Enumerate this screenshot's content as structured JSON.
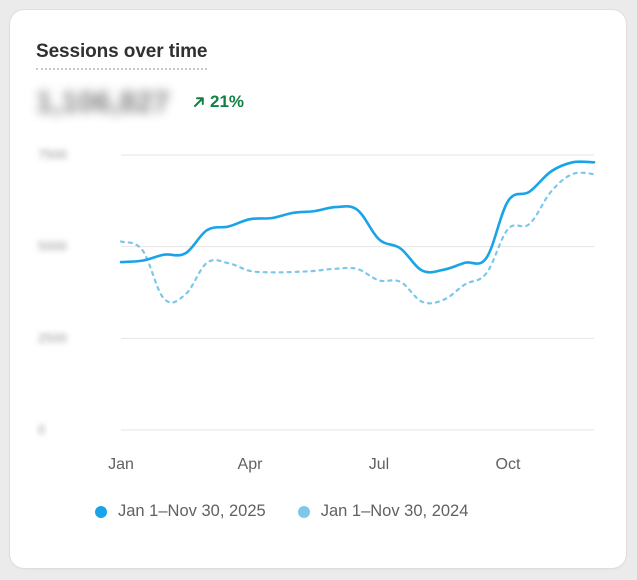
{
  "card": {
    "title": "Sessions over time",
    "total": "1,106,827",
    "change": "21%",
    "change_icon": "arrow-up-right-icon",
    "change_color": "#108043"
  },
  "chart_data": {
    "type": "line",
    "title": "Sessions over time",
    "xlabel": "",
    "ylabel": "",
    "x_tick_labels": [
      "Jan",
      "Apr",
      "Jul",
      "Oct"
    ],
    "y_tick_labels": [
      "7500",
      "5000",
      "2500",
      "0"
    ],
    "ylim": [
      0,
      7500
    ],
    "grid": true,
    "legend_position": "bottom",
    "x": [
      "Jan 1",
      "Jan 15",
      "Feb 1",
      "Feb 15",
      "Mar 1",
      "Mar 15",
      "Apr 1",
      "Apr 15",
      "May 1",
      "May 15",
      "Jun 1",
      "Jun 15",
      "Jul 1",
      "Jul 15",
      "Aug 1",
      "Aug 15",
      "Sep 1",
      "Sep 15",
      "Oct 1",
      "Oct 15",
      "Nov 1",
      "Nov 15",
      "Nov 30"
    ],
    "series": [
      {
        "name": "Jan 1–Nov 30, 2025",
        "color": "#1aa4e8",
        "style": "solid",
        "values": [
          4580,
          4620,
          4780,
          4820,
          5450,
          5550,
          5750,
          5780,
          5920,
          5970,
          6080,
          6000,
          5200,
          4950,
          4350,
          4370,
          4560,
          4700,
          6240,
          6500,
          7050,
          7300,
          7300
        ]
      },
      {
        "name": "Jan 1–Nov 30, 2024",
        "color": "#7cc7ea",
        "style": "dashed",
        "values": [
          5140,
          4900,
          3580,
          3700,
          4560,
          4550,
          4340,
          4300,
          4310,
          4340,
          4400,
          4390,
          4080,
          4040,
          3500,
          3550,
          3970,
          4280,
          5480,
          5620,
          6500,
          6980,
          6980
        ]
      }
    ]
  }
}
